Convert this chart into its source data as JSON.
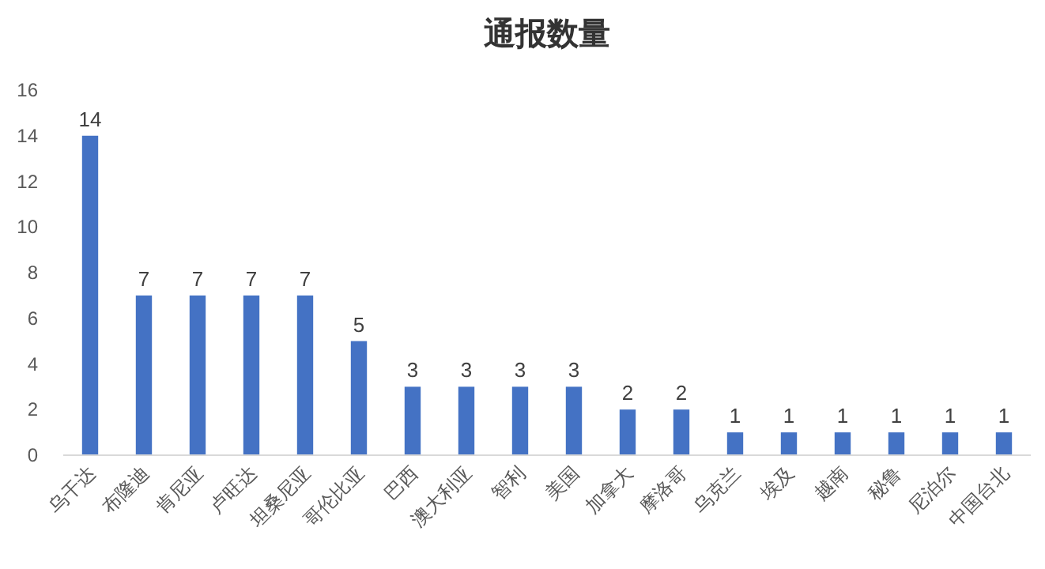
{
  "chart_data": {
    "type": "bar",
    "title": "通报数量",
    "categories": [
      "乌干达",
      "布隆迪",
      "肯尼亚",
      "卢旺达",
      "坦桑尼亚",
      "哥伦比亚",
      "巴西",
      "澳大利亚",
      "智利",
      "美国",
      "加拿大",
      "摩洛哥",
      "乌克兰",
      "埃及",
      "越南",
      "秘鲁",
      "尼泊尔",
      "中国台北"
    ],
    "values": [
      14,
      7,
      7,
      7,
      7,
      5,
      3,
      3,
      3,
      3,
      2,
      2,
      1,
      1,
      1,
      1,
      1,
      1
    ],
    "color": "#4472c4",
    "ylim": [
      0,
      16
    ],
    "yticks": [
      0,
      2,
      4,
      6,
      8,
      10,
      12,
      14,
      16
    ],
    "data_labels": true,
    "grid": false
  }
}
